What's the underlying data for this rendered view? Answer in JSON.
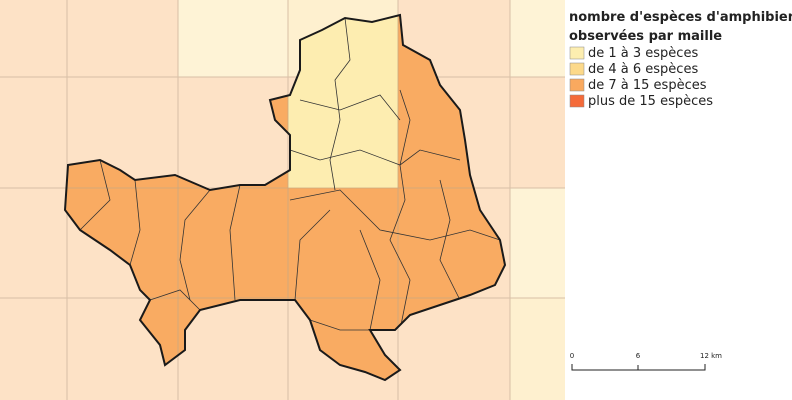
{
  "legend": {
    "title_line1": "nombre d'espèces d'amphibiens",
    "title_line2": "observées par maille",
    "items": [
      "de 1 à 3 espèces",
      "de 4 à 6 espèces",
      "de 7 à 15 espèces",
      "plus de 15 espèces"
    ]
  },
  "scale_bar": {
    "labels": [
      "0",
      "6",
      "12 km"
    ]
  }
}
